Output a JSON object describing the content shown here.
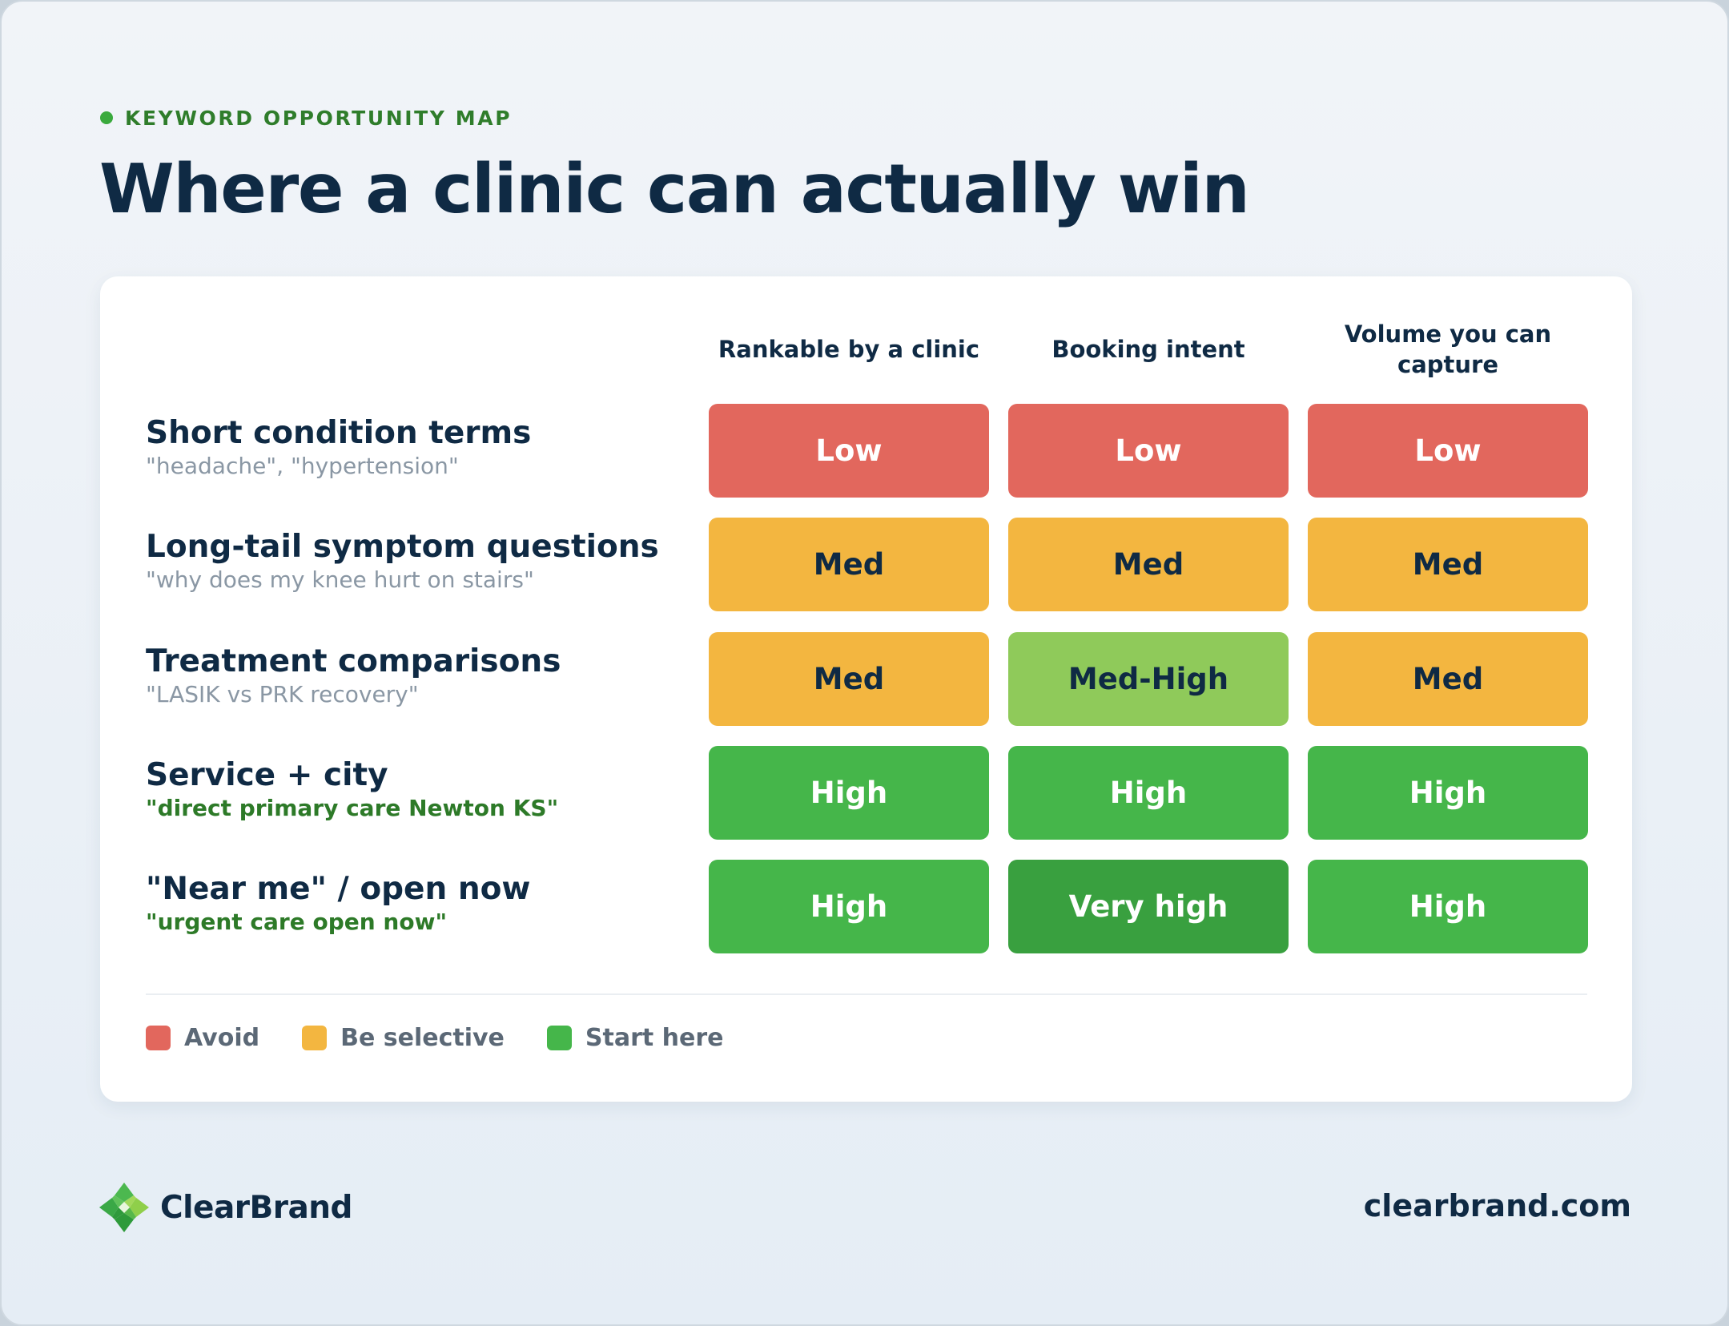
{
  "eyebrow": "KEYWORD OPPORTUNITY MAP",
  "title": "Where a clinic can actually win",
  "colors": {
    "low": "#e2675d",
    "med": "#f3b640",
    "med_high": "#8fca5a",
    "high": "#45b64a",
    "very_high": "#39a03f",
    "navy": "#0f2a44"
  },
  "chart_data": {
    "type": "table",
    "columns": [
      "Rankable by a clinic",
      "Booking intent",
      "Volume you can capture"
    ],
    "rows": [
      {
        "title": "Short condition terms",
        "example": "\"headache\", \"hypertension\"",
        "values": [
          "Low",
          "Low",
          "Low"
        ]
      },
      {
        "title": "Long-tail symptom questions",
        "example": "\"why does my knee hurt on stairs\"",
        "values": [
          "Med",
          "Med",
          "Med"
        ]
      },
      {
        "title": "Treatment comparisons",
        "example": "\"LASIK vs PRK recovery\"",
        "values": [
          "Med",
          "Med-High",
          "Med"
        ]
      },
      {
        "title": "Service + city",
        "example": "\"direct primary care Newton KS\"",
        "values": [
          "High",
          "High",
          "High"
        ]
      },
      {
        "title": "\"Near me\" / open now",
        "example": "\"urgent care open now\"",
        "values": [
          "High",
          "Very high",
          "High"
        ]
      }
    ],
    "legend": [
      {
        "label": "Avoid",
        "color": "#e2675d"
      },
      {
        "label": "Be selective",
        "color": "#f3b640"
      },
      {
        "label": "Start here",
        "color": "#45b64a"
      }
    ]
  },
  "footer": {
    "brand": "ClearBrand",
    "logo_icon": "clearbrand-logo-icon",
    "website": "clearbrand.com"
  }
}
